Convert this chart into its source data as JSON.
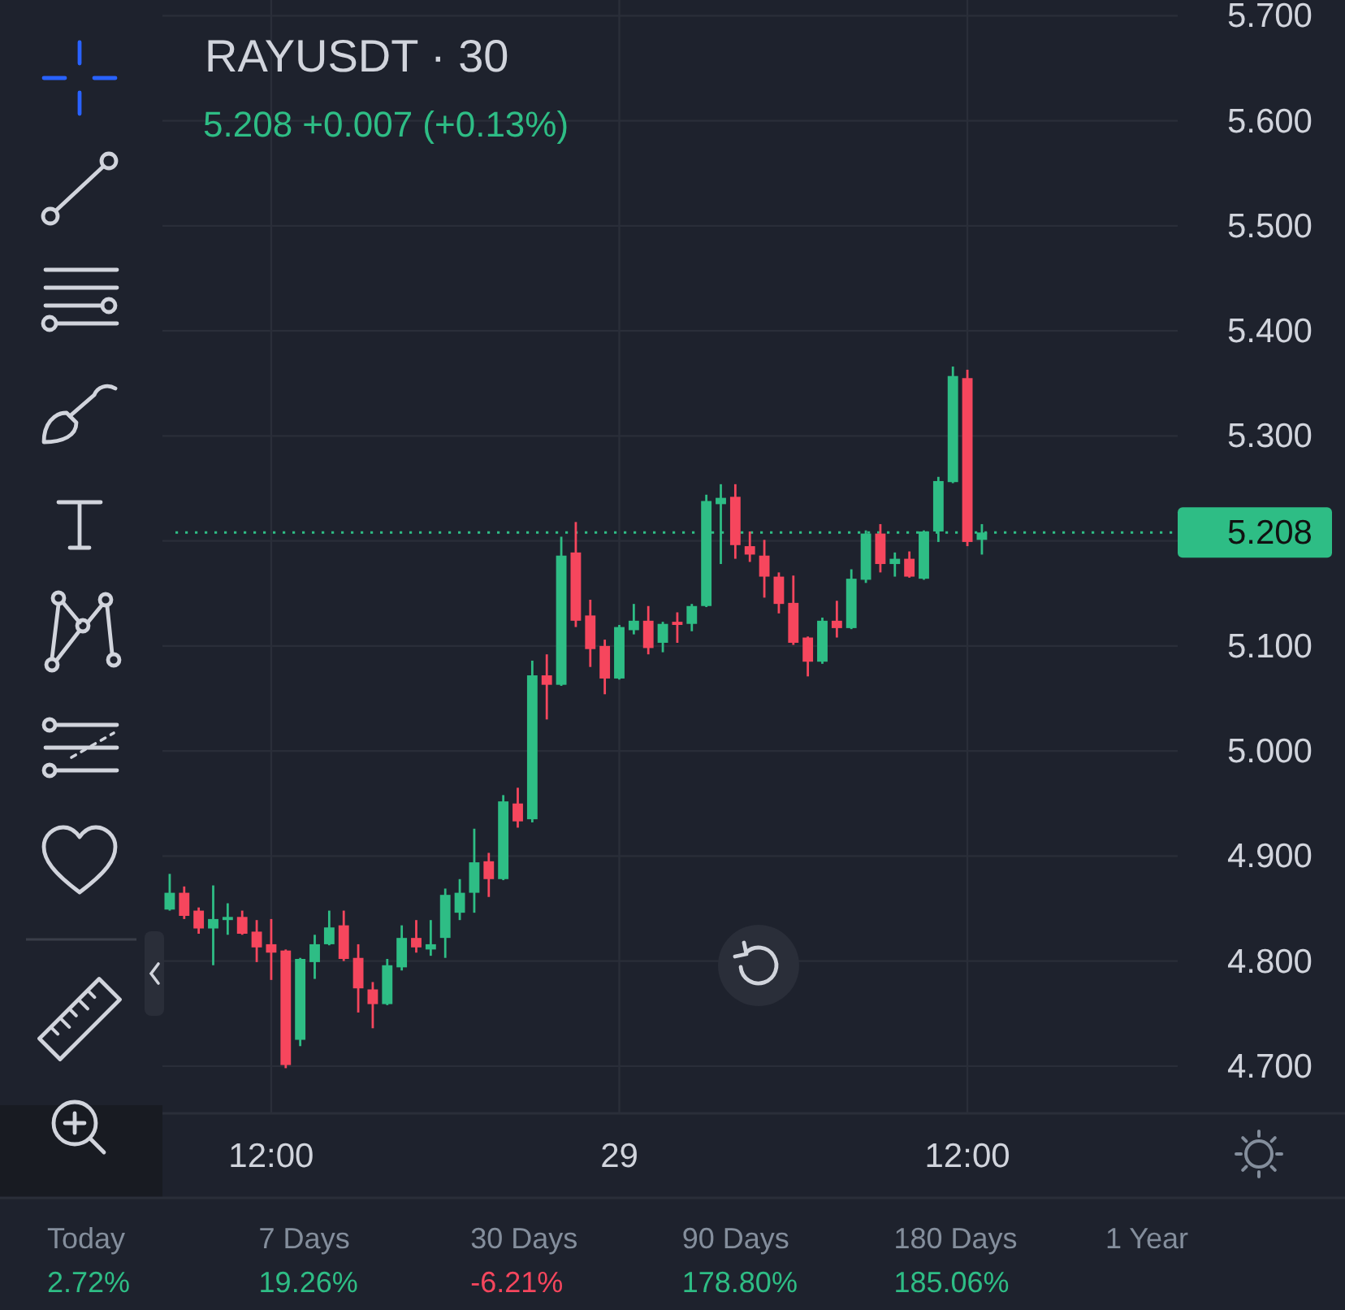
{
  "chart_data": {
    "type": "candlestick",
    "title": "RAYUSDT · 30",
    "subtitle": "5.208 +0.007 (+0.13%)",
    "categories": [
      null,
      null,
      null,
      null,
      null,
      null,
      null,
      "12:00",
      null,
      null,
      null,
      null,
      null,
      null,
      null,
      null,
      null,
      null,
      null,
      null,
      null,
      null,
      null,
      null,
      null,
      null,
      null,
      null,
      null,
      null,
      null,
      "29",
      null,
      null,
      null,
      null,
      null,
      null,
      null,
      null,
      null,
      null,
      null,
      null,
      null,
      null,
      null,
      null,
      null,
      null,
      null,
      null,
      null,
      null,
      null,
      "12:00",
      null,
      null,
      null,
      null,
      null,
      null,
      null,
      null,
      null,
      null,
      null,
      null,
      null,
      null
    ],
    "ohlc": [
      [
        4.849,
        4.883,
        4.848,
        4.865
      ],
      [
        4.865,
        4.871,
        4.84,
        4.843
      ],
      [
        4.848,
        4.851,
        4.826,
        4.831
      ],
      [
        4.831,
        4.872,
        4.796,
        4.84
      ],
      [
        4.839,
        4.855,
        4.825,
        4.842
      ],
      [
        4.842,
        4.848,
        4.825,
        4.826
      ],
      [
        4.828,
        4.839,
        4.799,
        4.813
      ],
      [
        4.816,
        4.84,
        4.782,
        4.808
      ],
      [
        4.81,
        4.811,
        4.698,
        4.701
      ],
      [
        4.725,
        4.803,
        4.719,
        4.802
      ],
      [
        4.799,
        4.825,
        4.783,
        4.816
      ],
      [
        4.816,
        4.848,
        4.815,
        4.832
      ],
      [
        4.834,
        4.848,
        4.8,
        4.802
      ],
      [
        4.803,
        4.816,
        4.751,
        4.774
      ],
      [
        4.773,
        4.78,
        4.736,
        4.759
      ],
      [
        4.759,
        4.802,
        4.758,
        4.796
      ],
      [
        4.794,
        4.834,
        4.791,
        4.822
      ],
      [
        4.822,
        4.839,
        4.808,
        4.813
      ],
      [
        4.811,
        4.839,
        4.805,
        4.816
      ],
      [
        4.822,
        4.869,
        4.803,
        4.863
      ],
      [
        4.846,
        4.878,
        4.839,
        4.865
      ],
      [
        4.865,
        4.926,
        4.846,
        4.894
      ],
      [
        4.895,
        4.903,
        4.861,
        4.878
      ],
      [
        4.878,
        4.958,
        4.877,
        4.952
      ],
      [
        4.95,
        4.965,
        4.927,
        4.933
      ],
      [
        4.935,
        5.086,
        4.932,
        5.072
      ],
      [
        5.072,
        5.092,
        5.03,
        5.063
      ],
      [
        5.063,
        5.204,
        5.062,
        5.186
      ],
      [
        5.189,
        5.218,
        5.118,
        5.124
      ],
      [
        5.129,
        5.144,
        5.08,
        5.097
      ],
      [
        5.1,
        5.106,
        5.054,
        5.069
      ],
      [
        5.069,
        5.12,
        5.068,
        5.118
      ],
      [
        5.115,
        5.14,
        5.111,
        5.124
      ],
      [
        5.124,
        5.138,
        5.092,
        5.098
      ],
      [
        5.103,
        5.123,
        5.094,
        5.121
      ],
      [
        5.123,
        5.132,
        5.103,
        5.12
      ],
      [
        5.121,
        5.14,
        5.114,
        5.138
      ],
      [
        5.138,
        5.244,
        5.137,
        5.238
      ],
      [
        5.235,
        5.254,
        5.178,
        5.241
      ],
      [
        5.242,
        5.254,
        5.183,
        5.196
      ],
      [
        5.195,
        5.209,
        5.18,
        5.187
      ],
      [
        5.186,
        5.201,
        5.146,
        5.166
      ],
      [
        5.166,
        5.17,
        5.131,
        5.14
      ],
      [
        5.141,
        5.167,
        5.101,
        5.103
      ],
      [
        5.108,
        5.109,
        5.071,
        5.085
      ],
      [
        5.085,
        5.127,
        5.083,
        5.124
      ],
      [
        5.124,
        5.143,
        5.108,
        5.117
      ],
      [
        5.117,
        5.173,
        5.116,
        5.164
      ],
      [
        5.163,
        5.21,
        5.16,
        5.207
      ],
      [
        5.207,
        5.216,
        5.17,
        5.178
      ],
      [
        5.178,
        5.189,
        5.166,
        5.183
      ],
      [
        5.183,
        5.19,
        5.165,
        5.166
      ],
      [
        5.164,
        5.21,
        5.163,
        5.209
      ],
      [
        5.209,
        5.261,
        5.199,
        5.257
      ],
      [
        5.256,
        5.366,
        5.255,
        5.357
      ],
      [
        5.355,
        5.363,
        5.195,
        5.199
      ],
      [
        5.201,
        5.216,
        5.187,
        5.208
      ],
      null,
      null,
      null,
      null,
      null,
      null,
      null,
      null,
      null,
      null,
      null,
      null,
      null
    ],
    "colors": [
      "#2ebd85",
      "#f6465d",
      "#f6465d",
      "#2ebd85",
      "#2ebd85",
      "#f6465d",
      "#f6465d",
      "#f6465d",
      "#f6465d",
      "#2ebd85",
      "#2ebd85",
      "#2ebd85",
      "#f6465d",
      "#f6465d",
      "#f6465d",
      "#2ebd85",
      "#2ebd85",
      "#f6465d",
      "#2ebd85",
      "#2ebd85",
      "#2ebd85",
      "#2ebd85",
      "#f6465d",
      "#2ebd85",
      "#f6465d",
      "#2ebd85",
      "#f6465d",
      "#2ebd85",
      "#f6465d",
      "#f6465d",
      "#f6465d",
      "#2ebd85",
      "#2ebd85",
      "#f6465d",
      "#2ebd85",
      "#f6465d",
      "#2ebd85",
      "#2ebd85",
      "#2ebd85",
      "#f6465d",
      "#f6465d",
      "#f6465d",
      "#f6465d",
      "#f6465d",
      "#f6465d",
      "#2ebd85",
      "#f6465d",
      "#2ebd85",
      "#2ebd85",
      "#f6465d",
      "#2ebd85",
      "#f6465d",
      "#2ebd85",
      "#2ebd85",
      "#2ebd85",
      "#f6465d",
      "#2ebd85",
      null,
      null,
      null,
      null,
      null,
      null,
      null,
      null,
      null,
      null,
      null,
      null,
      null
    ],
    "ylim": [
      4.655,
      5.715
    ],
    "yticks": [
      {
        "value": 4.7,
        "label": "4.700"
      },
      {
        "value": 4.8,
        "label": "4.800"
      },
      {
        "value": 4.9,
        "label": "4.900"
      },
      {
        "value": 5,
        "label": "5.000"
      },
      {
        "value": 5.1,
        "label": "5.100"
      },
      {
        "value": 5.2,
        "label": null
      },
      {
        "value": 5.3,
        "label": "5.300"
      },
      {
        "value": 5.4,
        "label": "5.400"
      },
      {
        "value": 5.5,
        "label": "5.500"
      },
      {
        "value": 5.6,
        "label": "5.600"
      },
      {
        "value": 5.7,
        "label": "5.700"
      }
    ],
    "grid": true,
    "ref_lines": [
      {
        "axis": "y",
        "value": 5.208,
        "label": "5.208",
        "color": "#2ebd85",
        "line_style": "dotted"
      }
    ],
    "annotations": [
      "Today",
      "2.72%",
      "7 Days",
      "19.26%",
      "30 Days",
      "-6.21%",
      "90 Days",
      "178.80%",
      "180 Days",
      "185.06%",
      "1 Year"
    ]
  }
}
